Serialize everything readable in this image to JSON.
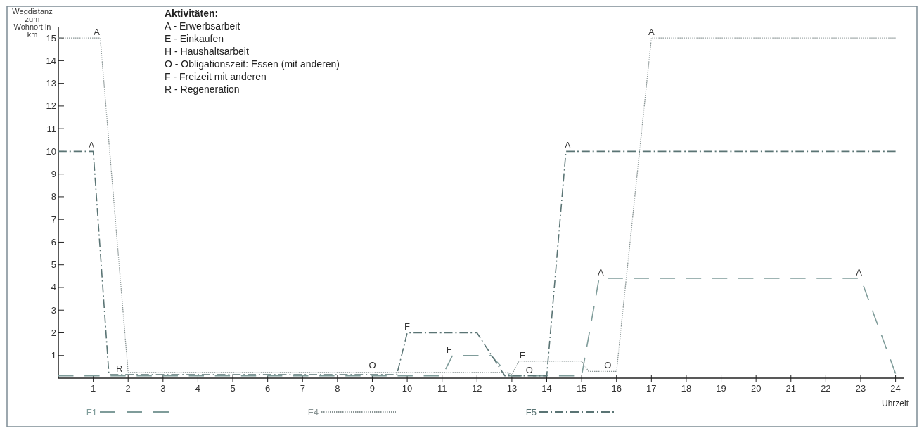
{
  "chart_data": {
    "type": "line",
    "xlabel": "Uhrzeit",
    "ylabel": "Wegdistanz zum Wohnort in km",
    "xlim": [
      0,
      24.25
    ],
    "ylim": [
      0,
      15.5
    ],
    "xticks": [
      1,
      2,
      3,
      4,
      5,
      6,
      7,
      8,
      9,
      10,
      11,
      12,
      13,
      14,
      15,
      16,
      17,
      18,
      19,
      20,
      21,
      22,
      23,
      24
    ],
    "yticks": [
      1,
      2,
      3,
      4,
      5,
      6,
      7,
      8,
      9,
      10,
      11,
      12,
      13,
      14,
      15
    ],
    "grid": false,
    "legend": "bottom",
    "marker": "none",
    "series": [
      {
        "name": "F1",
        "color": "#7f9c9a",
        "line_style": "dashed",
        "x": [
          0,
          11.0,
          11.3,
          12.4,
          12.95,
          15.0,
          15.5,
          23.0,
          24.0
        ],
        "values": [
          0.1,
          0.1,
          1.0,
          1.0,
          0.1,
          0.1,
          4.4,
          4.4,
          0.2
        ]
      },
      {
        "name": "F4",
        "color": "#8a9595",
        "line_style": "dotted",
        "x": [
          0,
          1.2,
          2.0,
          12.9,
          13.0,
          13.2,
          15.0,
          15.2,
          16.0,
          17.0,
          24.0
        ],
        "values": [
          15,
          15,
          0.25,
          0.25,
          0.15,
          0.75,
          0.75,
          0.3,
          0.3,
          15,
          15
        ]
      },
      {
        "name": "F5",
        "color": "#5a7474",
        "line_style": "dashdot",
        "x": [
          0,
          1.0,
          1.45,
          9.7,
          10.0,
          12.0,
          12.8,
          14.0,
          14.55,
          24.0
        ],
        "values": [
          10,
          10,
          0.15,
          0.15,
          2,
          2,
          0.1,
          0.1,
          10,
          10
        ]
      }
    ],
    "annotations": [
      "Aktivitäten:",
      "A - Erwerbsarbeit",
      "E - Einkaufen",
      "H - Haushaltsarbeit",
      "O - Obligationszeit: Essen (mit anderen)",
      "F - Freizeit mit anderen",
      "R - Regeneration",
      {
        "text": "A",
        "x": 1.1,
        "y": 15
      },
      {
        "text": "A",
        "x": 0.95,
        "y": 10
      },
      {
        "text": "R",
        "x": 1.75,
        "y": 0.15
      },
      {
        "text": "O",
        "x": 9.0,
        "y": 0.3
      },
      {
        "text": "F",
        "x": 10.0,
        "y": 2
      },
      {
        "text": "F",
        "x": 11.2,
        "y": 1
      },
      {
        "text": "F",
        "x": 13.3,
        "y": 0.75
      },
      {
        "text": "O",
        "x": 13.5,
        "y": 0.1
      },
      {
        "text": "A",
        "x": 14.6,
        "y": 10
      },
      {
        "text": "A",
        "x": 15.55,
        "y": 4.4
      },
      {
        "text": "O",
        "x": 15.75,
        "y": 0.3
      },
      {
        "text": "A",
        "x": 17.0,
        "y": 15
      },
      {
        "text": "A",
        "x": 22.95,
        "y": 4.4
      }
    ]
  }
}
